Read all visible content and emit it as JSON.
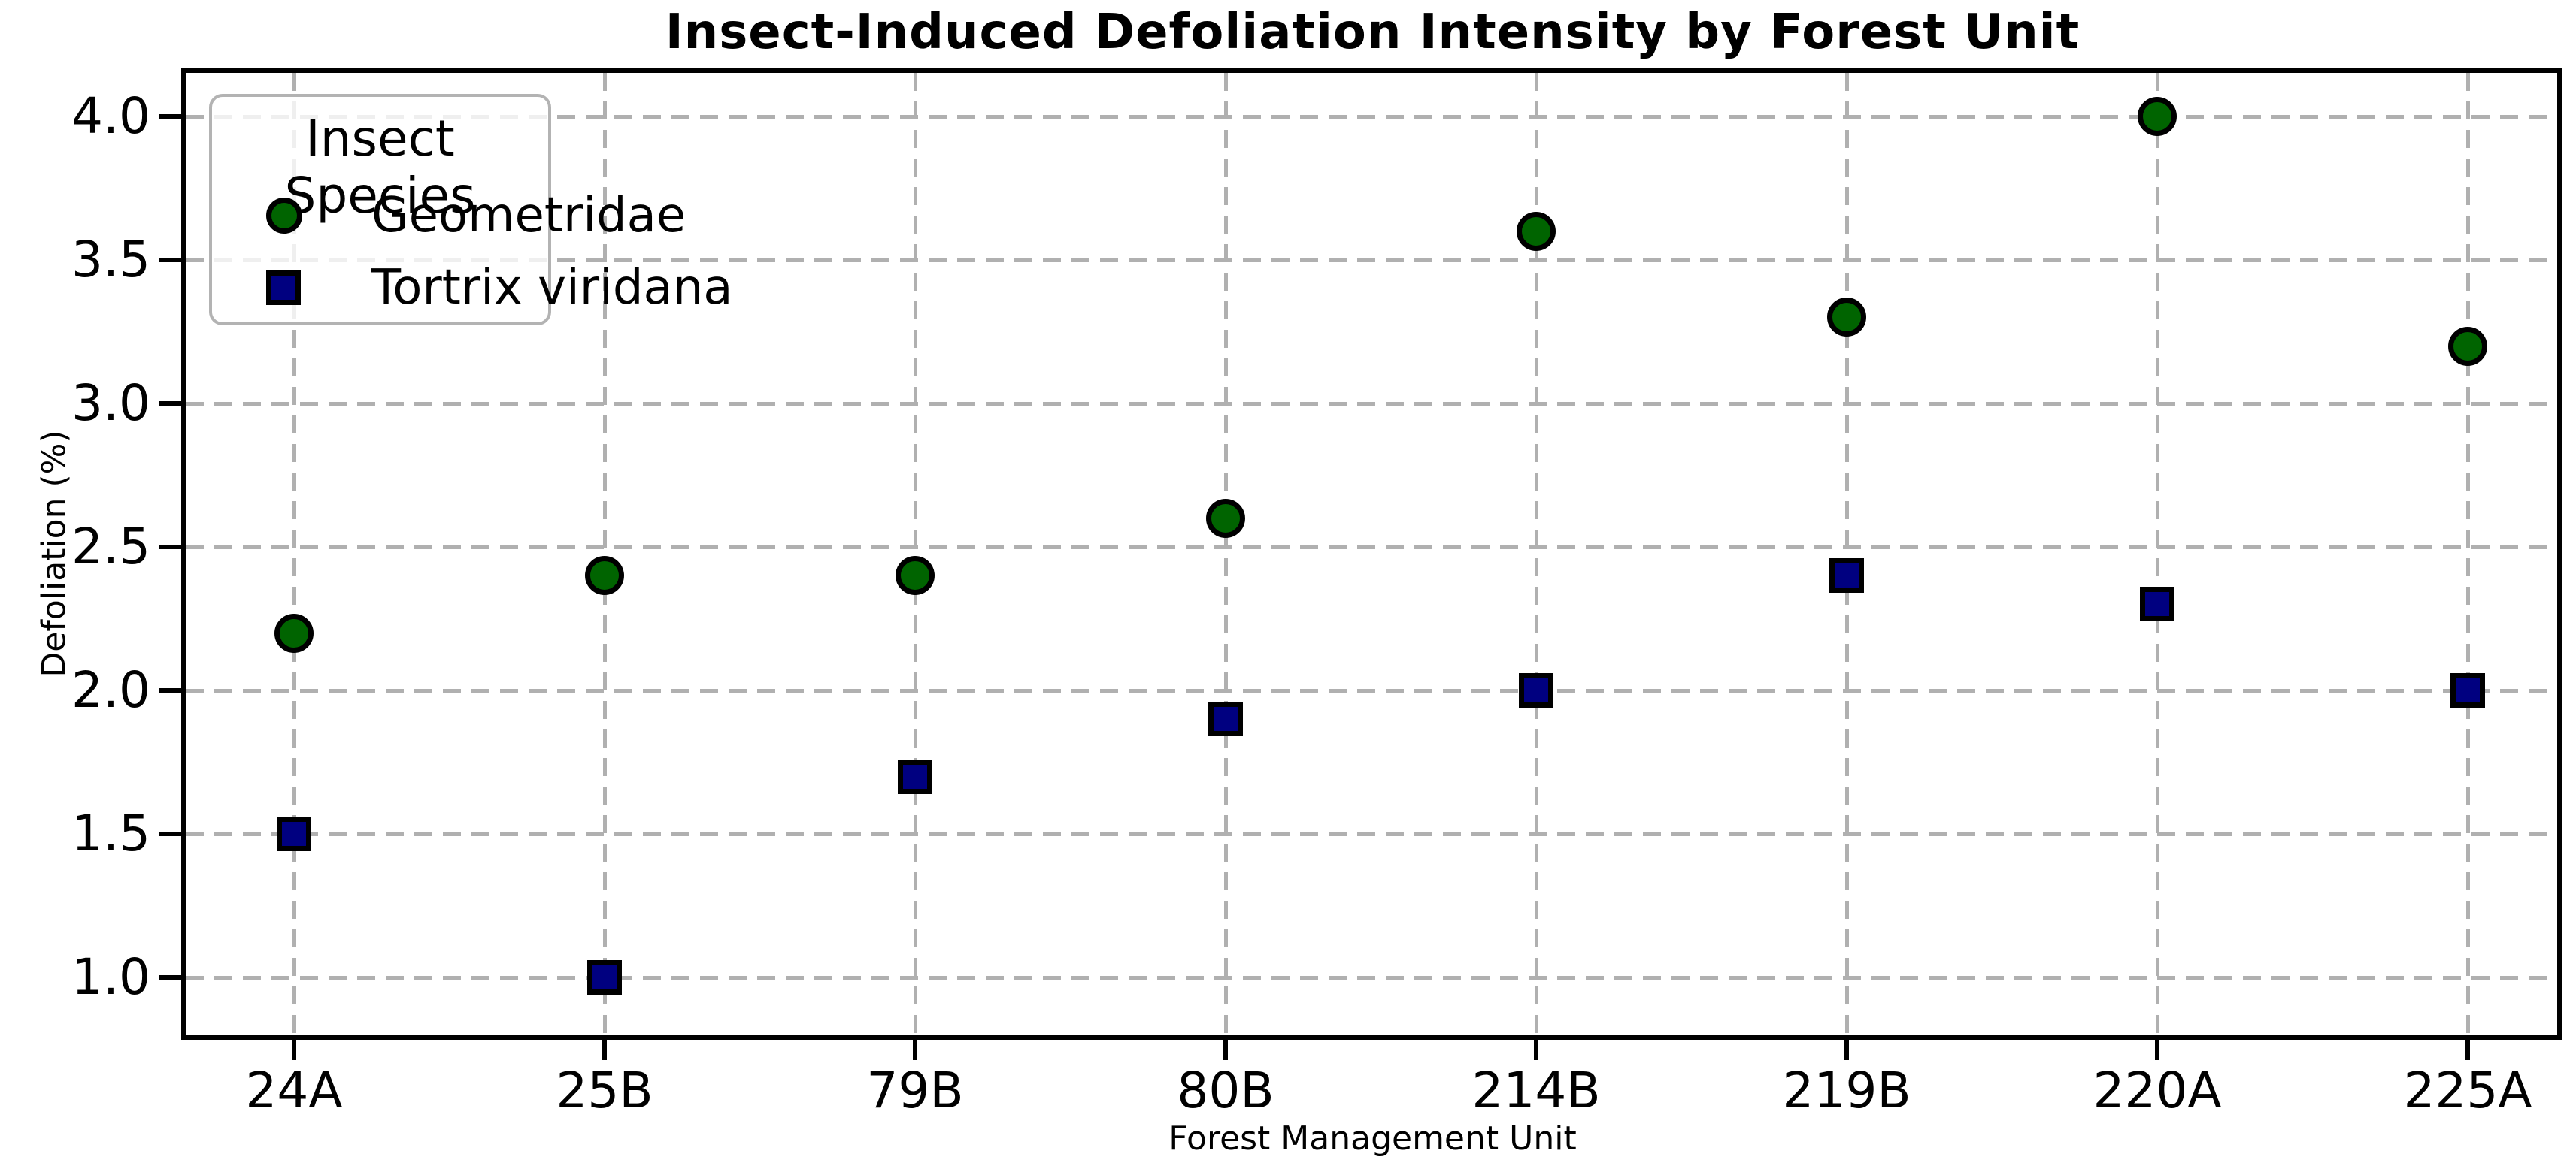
{
  "chart_data": {
    "type": "scatter",
    "title": "Insect-Induced Defoliation Intensity by Forest Unit",
    "xlabel": "Forest Management Unit",
    "ylabel": "Defoliation (%)",
    "categories": [
      "24A",
      "25B",
      "79B",
      "80B",
      "214B",
      "219B",
      "220A",
      "225A"
    ],
    "series": [
      {
        "name": "Geometridae",
        "marker": "circle",
        "fill_color": "#006400",
        "edge_color": "#000000",
        "values": [
          2.2,
          2.4,
          2.4,
          2.6,
          3.6,
          3.3,
          4.0,
          3.2
        ]
      },
      {
        "name": "Tortrix viridana",
        "marker": "square",
        "fill_color": "#000080",
        "edge_color": "#000000",
        "values": [
          1.5,
          1.0,
          1.7,
          1.9,
          2.0,
          2.4,
          2.3,
          2.0
        ]
      }
    ],
    "yticks": [
      4.0,
      3.5,
      3.0,
      2.5,
      2.0,
      1.5,
      1.0
    ],
    "ytick_labels": [
      "4.0",
      "3.5",
      "3.0",
      "2.5",
      "2.0",
      "1.5",
      "1.0"
    ],
    "ylim": [
      0.8,
      4.15
    ],
    "grid": true,
    "grid_style": "dashed",
    "grid_color": "#b0b0b0",
    "background_color": "#ffffff",
    "legend": {
      "title": "Insect Species",
      "position": "upper left",
      "entries": [
        "Geometridae",
        "Tortrix viridana"
      ]
    }
  }
}
